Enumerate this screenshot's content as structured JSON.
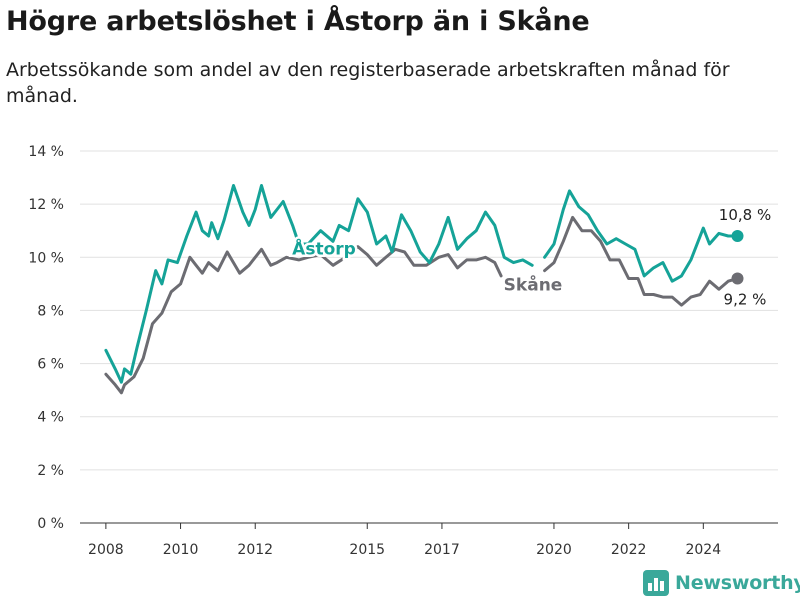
{
  "chart_data": {
    "type": "line",
    "title": "Högre arbetslöshet i Åstorp än i Skåne",
    "subtitle": "Arbetssökande som andel av den registerbaserade arbetskraften månad för månad.",
    "ylim": [
      0,
      14
    ],
    "y_ticks": [
      {
        "value": 0,
        "label": "0 %"
      },
      {
        "value": 2,
        "label": "2 %"
      },
      {
        "value": 4,
        "label": "4 %"
      },
      {
        "value": 6,
        "label": "6 %"
      },
      {
        "value": 8,
        "label": "8 %"
      },
      {
        "value": 10,
        "label": "10 %"
      },
      {
        "value": 12,
        "label": "12 %"
      },
      {
        "value": 14,
        "label": "14 %"
      }
    ],
    "x_ticks": [
      {
        "value": "2008-01",
        "label": "2008"
      },
      {
        "value": "2010-01",
        "label": "2010"
      },
      {
        "value": "2012-01",
        "label": "2012"
      },
      {
        "value": "2015-01",
        "label": "2015"
      },
      {
        "value": "2017-01",
        "label": "2017"
      },
      {
        "value": "2020-01",
        "label": "2020"
      },
      {
        "value": "2022-01",
        "label": "2022"
      },
      {
        "value": "2024-01",
        "label": "2024"
      }
    ],
    "grid": true,
    "series": [
      {
        "name": "Åstorp",
        "color": "#15a398",
        "end_label": "10,8 %",
        "points": [
          [
            "2008-01",
            6.5
          ],
          [
            "2008-04",
            5.8
          ],
          [
            "2008-06",
            5.3
          ],
          [
            "2008-07",
            5.8
          ],
          [
            "2008-09",
            5.6
          ],
          [
            "2008-11",
            6.6
          ],
          [
            "2009-02",
            8.0
          ],
          [
            "2009-05",
            9.5
          ],
          [
            "2009-07",
            9.0
          ],
          [
            "2009-09",
            9.9
          ],
          [
            "2009-12",
            9.8
          ],
          [
            "2010-03",
            10.8
          ],
          [
            "2010-06",
            11.7
          ],
          [
            "2010-08",
            11.0
          ],
          [
            "2010-10",
            10.8
          ],
          [
            "2010-11",
            11.3
          ],
          [
            "2011-01",
            10.7
          ],
          [
            "2011-03",
            11.4
          ],
          [
            "2011-06",
            12.7
          ],
          [
            "2011-09",
            11.7
          ],
          [
            "2011-11",
            11.2
          ],
          [
            "2012-01",
            11.8
          ],
          [
            "2012-03",
            12.7
          ],
          [
            "2012-06",
            11.5
          ],
          [
            "2012-08",
            11.8
          ],
          [
            "2012-10",
            12.1
          ],
          [
            "2013-01",
            11.2
          ],
          [
            "2013-03",
            10.5
          ],
          [
            "2013-06",
            10.5
          ],
          [
            "2013-10",
            11.0
          ],
          [
            "2014-02",
            10.6
          ],
          [
            "2014-04",
            11.2
          ],
          [
            "2014-07",
            11.0
          ],
          [
            "2014-10",
            12.2
          ],
          [
            "2015-01",
            11.7
          ],
          [
            "2015-04",
            10.5
          ],
          [
            "2015-07",
            10.8
          ],
          [
            "2015-09",
            10.2
          ],
          [
            "2015-12",
            11.6
          ],
          [
            "2016-03",
            11.0
          ],
          [
            "2016-06",
            10.2
          ],
          [
            "2016-09",
            9.8
          ],
          [
            "2016-12",
            10.5
          ],
          [
            "2017-03",
            11.5
          ],
          [
            "2017-06",
            10.3
          ],
          [
            "2017-09",
            10.7
          ],
          [
            "2017-12",
            11.0
          ],
          [
            "2018-03",
            11.7
          ],
          [
            "2018-06",
            11.2
          ],
          [
            "2018-09",
            10.0
          ],
          [
            "2018-12",
            9.8
          ],
          [
            "2019-03",
            9.9
          ],
          [
            "2019-06",
            9.7
          ],
          [
            "null",
            null
          ],
          [
            "2019-10",
            10.0
          ],
          [
            "2020-01",
            10.5
          ],
          [
            "2020-04",
            11.8
          ],
          [
            "2020-06",
            12.5
          ],
          [
            "2020-09",
            11.9
          ],
          [
            "2020-12",
            11.6
          ],
          [
            "2021-03",
            11.0
          ],
          [
            "2021-06",
            10.5
          ],
          [
            "2021-09",
            10.7
          ],
          [
            "2021-12",
            10.5
          ],
          [
            "2022-03",
            10.3
          ],
          [
            "2022-06",
            9.3
          ],
          [
            "2022-09",
            9.6
          ],
          [
            "2022-12",
            9.8
          ],
          [
            "2023-03",
            9.1
          ],
          [
            "2023-06",
            9.3
          ],
          [
            "2023-09",
            9.9
          ],
          [
            "2024-01",
            11.1
          ],
          [
            "2024-03",
            10.5
          ],
          [
            "2024-06",
            10.9
          ],
          [
            "2024-09",
            10.8
          ],
          [
            "2024-12",
            10.8
          ]
        ]
      },
      {
        "name": "Skåne",
        "color": "#6c6c72",
        "end_label": "9,2 %",
        "points": [
          [
            "2008-01",
            5.6
          ],
          [
            "2008-04",
            5.2
          ],
          [
            "2008-06",
            4.9
          ],
          [
            "2008-07",
            5.2
          ],
          [
            "2008-10",
            5.5
          ],
          [
            "2009-01",
            6.2
          ],
          [
            "2009-04",
            7.5
          ],
          [
            "2009-07",
            7.9
          ],
          [
            "2009-10",
            8.7
          ],
          [
            "2010-01",
            9.0
          ],
          [
            "2010-04",
            10.0
          ],
          [
            "2010-06",
            9.7
          ],
          [
            "2010-08",
            9.4
          ],
          [
            "2010-10",
            9.8
          ],
          [
            "2011-01",
            9.5
          ],
          [
            "2011-04",
            10.2
          ],
          [
            "2011-08",
            9.4
          ],
          [
            "2011-11",
            9.7
          ],
          [
            "2012-03",
            10.3
          ],
          [
            "2012-06",
            9.7
          ],
          [
            "2012-08",
            9.8
          ],
          [
            "2012-11",
            10.0
          ],
          [
            "2013-03",
            9.9
          ],
          [
            "2013-06",
            10.0
          ],
          [
            "2013-10",
            10.1
          ],
          [
            "2014-02",
            9.7
          ],
          [
            "2014-06",
            10.0
          ],
          [
            "2014-10",
            10.4
          ],
          [
            "2015-01",
            10.1
          ],
          [
            "2015-04",
            9.7
          ],
          [
            "2015-07",
            10.0
          ],
          [
            "2015-10",
            10.3
          ],
          [
            "2016-01",
            10.2
          ],
          [
            "2016-04",
            9.7
          ],
          [
            "2016-08",
            9.7
          ],
          [
            "2016-12",
            10.0
          ],
          [
            "2017-03",
            10.1
          ],
          [
            "2017-06",
            9.6
          ],
          [
            "2017-09",
            9.9
          ],
          [
            "2017-12",
            9.9
          ],
          [
            "2018-03",
            10.0
          ],
          [
            "2018-06",
            9.8
          ],
          [
            "2018-08",
            9.3
          ],
          [
            "null",
            null
          ],
          [
            "2019-10",
            9.5
          ],
          [
            "2020-01",
            9.8
          ],
          [
            "2020-04",
            10.6
          ],
          [
            "2020-07",
            11.5
          ],
          [
            "2020-10",
            11.0
          ],
          [
            "2021-01",
            11.0
          ],
          [
            "2021-04",
            10.6
          ],
          [
            "2021-07",
            9.9
          ],
          [
            "2021-10",
            9.9
          ],
          [
            "2022-01",
            9.2
          ],
          [
            "2022-04",
            9.2
          ],
          [
            "2022-06",
            8.6
          ],
          [
            "2022-09",
            8.6
          ],
          [
            "2022-12",
            8.5
          ],
          [
            "2023-03",
            8.5
          ],
          [
            "2023-06",
            8.2
          ],
          [
            "2023-09",
            8.5
          ],
          [
            "2023-12",
            8.6
          ],
          [
            "2024-03",
            9.1
          ],
          [
            "2024-06",
            8.8
          ],
          [
            "2024-09",
            9.1
          ],
          [
            "2024-12",
            9.2
          ]
        ]
      }
    ]
  },
  "brand": {
    "name": "Newsworthy",
    "icon": "bar-chart-logo-icon",
    "color": "#3aa89a"
  }
}
